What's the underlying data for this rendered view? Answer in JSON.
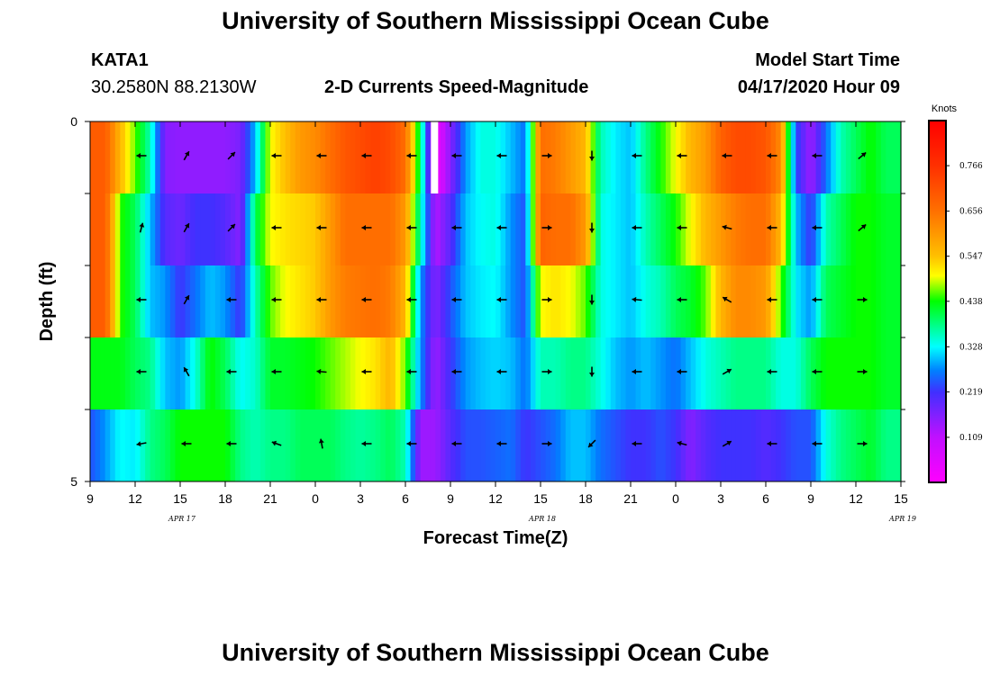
{
  "header": {
    "title": "University of Southern Mississippi Ocean Cube",
    "station_id": "KATA1",
    "station_coords": "30.2580N 88.2130W",
    "subtitle": "2-D Currents Speed-Magnitude",
    "model_label": "Model Start Time",
    "model_time": "04/17/2020 Hour 09"
  },
  "footer": {
    "title": "University of Southern Mississippi Ocean Cube"
  },
  "chart_data": {
    "type": "heatmap",
    "title": "2-D Currents Speed-Magnitude",
    "xlabel": "Forecast Time(Z)",
    "ylabel": "Depth (ft)",
    "ylim": [
      0,
      5
    ],
    "y_tick_labels": [
      "0",
      "5"
    ],
    "x_tick_labels": [
      "9",
      "12",
      "15",
      "18",
      "21",
      "0",
      "3",
      "6",
      "9",
      "12",
      "15",
      "18",
      "21",
      "0",
      "3",
      "6",
      "9",
      "12",
      "15"
    ],
    "date_labels": [
      {
        "text": "APR 17",
        "hour_offset": 6
      },
      {
        "text": "APR 18",
        "hour_offset": 30
      },
      {
        "text": "APR 19",
        "hour_offset": 54
      }
    ],
    "hours_total": 54,
    "rows": 5,
    "colorbar": {
      "unit": "Knots",
      "min": 0.0,
      "max": 0.875,
      "ticks": [
        "0.109",
        "0.219",
        "0.328",
        "0.438",
        "0.547",
        "0.656",
        "0.766"
      ],
      "stops": [
        {
          "v": 0.0,
          "c": "#ff00ff"
        },
        {
          "v": 0.109,
          "c": "#c010ff"
        },
        {
          "v": 0.219,
          "c": "#4030ff"
        },
        {
          "v": 0.27,
          "c": "#0080ff"
        },
        {
          "v": 0.328,
          "c": "#00ffff"
        },
        {
          "v": 0.438,
          "c": "#00ff00"
        },
        {
          "v": 0.5,
          "c": "#ffff00"
        },
        {
          "v": 0.547,
          "c": "#ffc000"
        },
        {
          "v": 0.656,
          "c": "#ff7000"
        },
        {
          "v": 0.766,
          "c": "#ff3000"
        },
        {
          "v": 0.875,
          "c": "#ff0000"
        }
      ]
    },
    "profiles": [
      {
        "t": 0,
        "d": [
          0.69,
          0.69,
          0.69,
          0.43,
          0.24
        ]
      },
      {
        "t": 1,
        "d": [
          0.69,
          0.69,
          0.69,
          0.43,
          0.28
        ]
      },
      {
        "t": 2,
        "d": [
          0.56,
          0.45,
          0.45,
          0.43,
          0.33
        ]
      },
      {
        "t": 3,
        "d": [
          0.46,
          0.4,
          0.4,
          0.4,
          0.32
        ]
      },
      {
        "t": 4,
        "d": [
          0.36,
          0.3,
          0.3,
          0.38,
          0.38
        ]
      },
      {
        "t": 5,
        "d": [
          0.16,
          0.2,
          0.28,
          0.3,
          0.4
        ]
      },
      {
        "t": 6,
        "d": [
          0.15,
          0.18,
          0.22,
          0.28,
          0.44
        ]
      },
      {
        "t": 7,
        "d": [
          0.15,
          0.22,
          0.26,
          0.34,
          0.44
        ]
      },
      {
        "t": 8,
        "d": [
          0.15,
          0.22,
          0.3,
          0.44,
          0.44
        ]
      },
      {
        "t": 9,
        "d": [
          0.15,
          0.2,
          0.28,
          0.4,
          0.44
        ]
      },
      {
        "t": 10,
        "d": [
          0.17,
          0.16,
          0.22,
          0.33,
          0.38
        ]
      },
      {
        "t": 11,
        "d": [
          0.3,
          0.4,
          0.36,
          0.35,
          0.36
        ]
      },
      {
        "t": 12,
        "d": [
          0.5,
          0.5,
          0.46,
          0.42,
          0.38
        ]
      },
      {
        "t": 13,
        "d": [
          0.55,
          0.52,
          0.5,
          0.42,
          0.38
        ]
      },
      {
        "t": 14,
        "d": [
          0.6,
          0.53,
          0.52,
          0.43,
          0.4
        ]
      },
      {
        "t": 15,
        "d": [
          0.62,
          0.54,
          0.54,
          0.44,
          0.4
        ]
      },
      {
        "t": 16,
        "d": [
          0.66,
          0.6,
          0.6,
          0.46,
          0.4
        ]
      },
      {
        "t": 17,
        "d": [
          0.7,
          0.66,
          0.64,
          0.48,
          0.38
        ]
      },
      {
        "t": 18,
        "d": [
          0.72,
          0.66,
          0.65,
          0.5,
          0.37
        ]
      },
      {
        "t": 19,
        "d": [
          0.74,
          0.66,
          0.66,
          0.52,
          0.38
        ]
      },
      {
        "t": 20,
        "d": [
          0.72,
          0.66,
          0.64,
          0.56,
          0.4
        ]
      },
      {
        "t": 21,
        "d": [
          0.66,
          0.6,
          0.56,
          0.46,
          0.36
        ]
      },
      {
        "t": 22,
        "d": [
          0.4,
          0.36,
          0.28,
          0.28,
          0.14
        ]
      },
      {
        "t": 23,
        "d": [
          0.02,
          0.12,
          0.16,
          0.14,
          0.14
        ]
      },
      {
        "t": 24,
        "d": [
          0.16,
          0.2,
          0.24,
          0.22,
          0.2
        ]
      },
      {
        "t": 25,
        "d": [
          0.28,
          0.3,
          0.3,
          0.28,
          0.24
        ]
      },
      {
        "t": 26,
        "d": [
          0.34,
          0.33,
          0.32,
          0.3,
          0.24
        ]
      },
      {
        "t": 27,
        "d": [
          0.34,
          0.34,
          0.33,
          0.31,
          0.25
        ]
      },
      {
        "t": 28,
        "d": [
          0.3,
          0.28,
          0.28,
          0.3,
          0.26
        ]
      },
      {
        "t": 29,
        "d": [
          0.26,
          0.24,
          0.24,
          0.26,
          0.22
        ]
      },
      {
        "t": 30,
        "d": [
          0.66,
          0.68,
          0.5,
          0.36,
          0.24
        ]
      },
      {
        "t": 31,
        "d": [
          0.64,
          0.66,
          0.52,
          0.36,
          0.26
        ]
      },
      {
        "t": 32,
        "d": [
          0.6,
          0.66,
          0.5,
          0.38,
          0.3
        ]
      },
      {
        "t": 33,
        "d": [
          0.56,
          0.6,
          0.46,
          0.38,
          0.3
        ]
      },
      {
        "t": 34,
        "d": [
          0.36,
          0.34,
          0.34,
          0.34,
          0.26
        ]
      },
      {
        "t": 35,
        "d": [
          0.32,
          0.32,
          0.32,
          0.3,
          0.24
        ]
      },
      {
        "t": 36,
        "d": [
          0.3,
          0.3,
          0.3,
          0.28,
          0.22
        ]
      },
      {
        "t": 37,
        "d": [
          0.38,
          0.36,
          0.34,
          0.3,
          0.22
        ]
      },
      {
        "t": 38,
        "d": [
          0.44,
          0.4,
          0.36,
          0.28,
          0.24
        ]
      },
      {
        "t": 39,
        "d": [
          0.5,
          0.44,
          0.4,
          0.26,
          0.22
        ]
      },
      {
        "t": 40,
        "d": [
          0.56,
          0.5,
          0.42,
          0.3,
          0.16
        ]
      },
      {
        "t": 41,
        "d": [
          0.6,
          0.56,
          0.46,
          0.34,
          0.2
        ]
      },
      {
        "t": 42,
        "d": [
          0.68,
          0.6,
          0.56,
          0.36,
          0.22
        ]
      },
      {
        "t": 43,
        "d": [
          0.72,
          0.64,
          0.62,
          0.38,
          0.22
        ]
      },
      {
        "t": 44,
        "d": [
          0.72,
          0.66,
          0.62,
          0.38,
          0.22
        ]
      },
      {
        "t": 45,
        "d": [
          0.7,
          0.66,
          0.6,
          0.38,
          0.2
        ]
      },
      {
        "t": 46,
        "d": [
          0.62,
          0.56,
          0.46,
          0.34,
          0.22
        ]
      },
      {
        "t": 47,
        "d": [
          0.24,
          0.3,
          0.32,
          0.34,
          0.24
        ]
      },
      {
        "t": 48,
        "d": [
          0.14,
          0.22,
          0.28,
          0.4,
          0.24
        ]
      },
      {
        "t": 49,
        "d": [
          0.26,
          0.36,
          0.4,
          0.44,
          0.34
        ]
      },
      {
        "t": 50,
        "d": [
          0.36,
          0.4,
          0.42,
          0.44,
          0.38
        ]
      },
      {
        "t": 51,
        "d": [
          0.4,
          0.44,
          0.44,
          0.44,
          0.4
        ]
      },
      {
        "t": 52,
        "d": [
          0.44,
          0.44,
          0.44,
          0.44,
          0.42
        ]
      },
      {
        "t": 53,
        "d": [
          0.4,
          0.42,
          0.42,
          0.42,
          0.38
        ]
      },
      {
        "t": 54,
        "d": [
          0.4,
          0.42,
          0.42,
          0.42,
          0.38
        ]
      }
    ],
    "missing_cell": {
      "hour": 23,
      "row": 0
    },
    "vectors": [
      {
        "t": 3,
        "dirs": [
          180,
          75,
          180,
          180,
          190
        ]
      },
      {
        "t": 6,
        "dirs": [
          60,
          60,
          60,
          120,
          180
        ]
      },
      {
        "t": 9,
        "dirs": [
          45,
          45,
          180,
          180,
          180
        ]
      },
      {
        "t": 12,
        "dirs": [
          180,
          180,
          180,
          180,
          160
        ]
      },
      {
        "t": 15,
        "dirs": [
          180,
          180,
          180,
          175,
          100
        ]
      },
      {
        "t": 18,
        "dirs": [
          180,
          180,
          180,
          180,
          180
        ]
      },
      {
        "t": 21,
        "dirs": [
          180,
          180,
          180,
          180,
          180
        ]
      },
      {
        "t": 24,
        "dirs": [
          180,
          180,
          180,
          180,
          180
        ]
      },
      {
        "t": 27,
        "dirs": [
          180,
          180,
          180,
          180,
          180
        ]
      },
      {
        "t": 30,
        "dirs": [
          0,
          0,
          0,
          0,
          0
        ]
      },
      {
        "t": 33,
        "dirs": [
          270,
          270,
          270,
          270,
          225
        ]
      },
      {
        "t": 36,
        "dirs": [
          180,
          180,
          175,
          180,
          180
        ]
      },
      {
        "t": 39,
        "dirs": [
          180,
          180,
          180,
          180,
          165
        ]
      },
      {
        "t": 42,
        "dirs": [
          180,
          165,
          150,
          30,
          30
        ]
      },
      {
        "t": 45,
        "dirs": [
          180,
          180,
          180,
          180,
          180
        ]
      },
      {
        "t": 48,
        "dirs": [
          180,
          180,
          180,
          180,
          180
        ]
      },
      {
        "t": 51,
        "dirs": [
          40,
          40,
          0,
          0,
          0
        ]
      }
    ]
  }
}
